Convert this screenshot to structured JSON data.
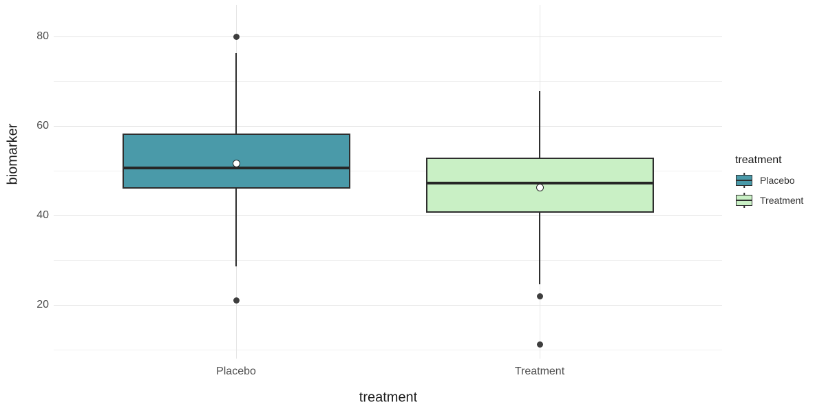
{
  "chart_data": {
    "type": "boxplot",
    "title": "",
    "xlabel": "treatment",
    "ylabel": "biomarker",
    "legend_title": "treatment",
    "categories": [
      "Placebo",
      "Treatment"
    ],
    "series": [
      {
        "name": "Placebo",
        "fill": "#4a9aa9",
        "whisker_low": 28.6,
        "q1": 46.0,
        "median": 50.7,
        "q3": 58.3,
        "whisker_high": 76.4,
        "mean": 51.6,
        "outliers": [
          80.0,
          21.0
        ]
      },
      {
        "name": "Treatment",
        "fill": "#c9f0c5",
        "whisker_low": 24.6,
        "q1": 40.6,
        "median": 47.3,
        "q3": 52.9,
        "whisker_high": 67.8,
        "mean": 46.2,
        "outliers": [
          21.9,
          11.2
        ]
      }
    ],
    "y_ticks_major": [
      20,
      40,
      60,
      80
    ],
    "y_ticks_minor": [
      10,
      30,
      50,
      70
    ],
    "ylim": [
      8.05,
      87.1
    ],
    "grid": true,
    "legend_position": "right",
    "colors": {
      "stroke": "#2e2e2e",
      "median": "#262626",
      "outlier": "#3e3e3e",
      "mean_fill": "#ffffff",
      "grid_major": "#e4e4e4",
      "grid_minor": "#f0f0f0",
      "background": "#ffffff"
    }
  },
  "layout_text": {
    "y_tick_labels": [
      "20",
      "40",
      "60",
      "80"
    ]
  }
}
